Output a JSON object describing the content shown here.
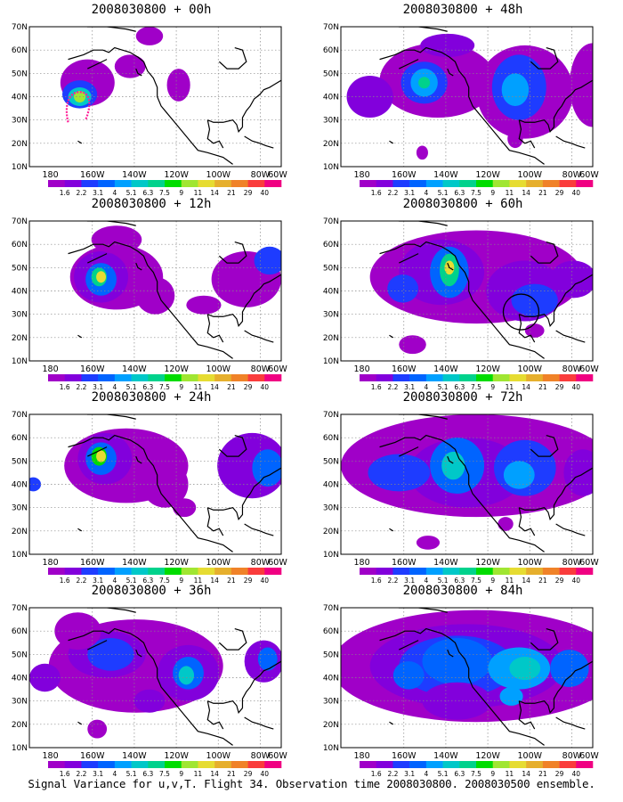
{
  "ylabels": [
    "70N",
    "60N",
    "50N",
    "40N",
    "30N",
    "20N",
    "10N"
  ],
  "xlabels": [
    "180",
    "160W",
    "140W",
    "120W",
    "100W",
    "80W",
    "60W"
  ],
  "colorbar": {
    "labels": [
      "1.6",
      "2.2",
      "3.1",
      "4",
      "5.1",
      "6.3",
      "7.5",
      "9",
      "11",
      "14",
      "21",
      "29",
      "40"
    ],
    "colors": [
      "#a000c8",
      "#8200dc",
      "#1e3cff",
      "#0064ff",
      "#00a0ff",
      "#00c8c8",
      "#00d28c",
      "#00dc00",
      "#a0e632",
      "#e6dc32",
      "#e6af2d",
      "#f08228",
      "#fa3c3c",
      "#f00082"
    ]
  },
  "panels": [
    {
      "title": "2008030800 + 00h"
    },
    {
      "title": "2008030800 + 48h"
    },
    {
      "title": "2008030800 + 12h"
    },
    {
      "title": "2008030800 + 60h"
    },
    {
      "title": "2008030800 + 24h"
    },
    {
      "title": "2008030800 + 72h"
    },
    {
      "title": "2008030800 + 36h"
    },
    {
      "title": "2008030800 + 84h"
    }
  ],
  "caption": "Signal Variance for u,v,T. Flight 34. Observation time 2008030800. 2008030500 ensemble."
}
